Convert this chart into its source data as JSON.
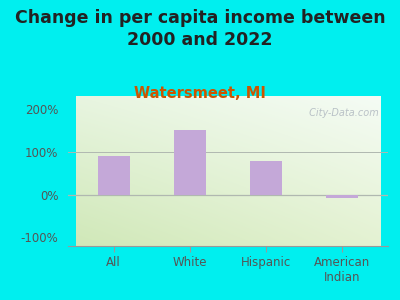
{
  "title": "Change in per capita income between\n2000 and 2022",
  "subtitle": "Watersmeet, MI",
  "categories": [
    "All",
    "White",
    "Hispanic",
    "American\nIndian"
  ],
  "values": [
    90,
    150,
    78,
    -8
  ],
  "bar_color": "#c4a8d8",
  "bar_width": 0.42,
  "ylim": [
    -120,
    230
  ],
  "yticks": [
    -100,
    0,
    100,
    200
  ],
  "ytick_labels": [
    "-100%",
    "0%",
    "100%",
    "200%"
  ],
  "bg_outer": "#00efef",
  "bg_plot_topleft": "#e8f5e0",
  "bg_plot_topright": "#f5faf5",
  "bg_plot_bottom": "#d0e8b8",
  "title_fontsize": 12.5,
  "title_color": "#222222",
  "subtitle_fontsize": 10.5,
  "subtitle_color": "#cc5500",
  "axis_label_color": "#555555",
  "tick_label_color": "#555555",
  "watermark": " City-Data.com",
  "watermark_color": "#b0b8c0",
  "hline_color": "#b0b8b0",
  "spine_color": "#999999"
}
